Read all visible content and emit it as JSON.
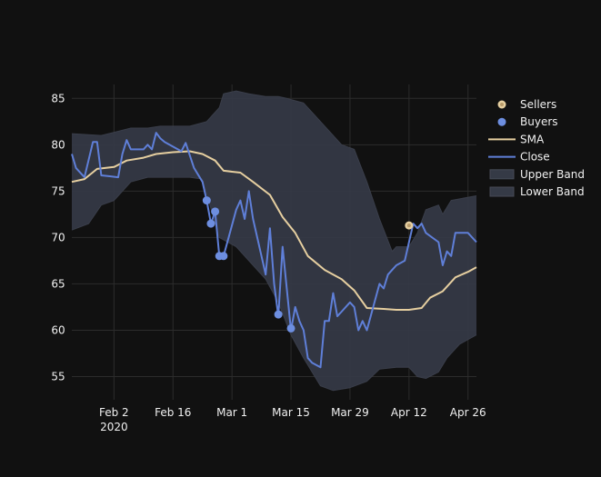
{
  "chart_data": {
    "type": "line",
    "title": "",
    "xlabel": "",
    "ylabel": "",
    "x_ticks": [
      {
        "date": "2020-02-02",
        "label": "Feb 2",
        "sublabel": "2020"
      },
      {
        "date": "2020-02-16",
        "label": "Feb 16",
        "sublabel": ""
      },
      {
        "date": "2020-03-01",
        "label": "Mar 1",
        "sublabel": ""
      },
      {
        "date": "2020-03-15",
        "label": "Mar 15",
        "sublabel": ""
      },
      {
        "date": "2020-03-29",
        "label": "Mar 29",
        "sublabel": ""
      },
      {
        "date": "2020-04-12",
        "label": "Apr 12",
        "sublabel": ""
      },
      {
        "date": "2020-04-26",
        "label": "Apr 26",
        "sublabel": ""
      }
    ],
    "xlim": [
      "2020-01-23",
      "2020-04-28"
    ],
    "ylim": [
      52.5,
      86.5
    ],
    "y_ticks": [
      55,
      60,
      65,
      70,
      75,
      80,
      85
    ],
    "grid": true,
    "legend_position": "top-right",
    "series": [
      {
        "name": "Close",
        "color": "#5f7fd8",
        "points": [
          [
            "2020-01-23",
            79
          ],
          [
            "2020-01-24",
            77.5
          ],
          [
            "2020-01-26",
            76.5
          ],
          [
            "2020-01-28",
            80.3
          ],
          [
            "2020-01-29",
            80.3
          ],
          [
            "2020-01-30",
            76.7
          ],
          [
            "2020-02-01",
            76.6
          ],
          [
            "2020-02-03",
            76.5
          ],
          [
            "2020-02-04",
            79
          ],
          [
            "2020-02-05",
            80.5
          ],
          [
            "2020-02-06",
            79.5
          ],
          [
            "2020-02-09",
            79.5
          ],
          [
            "2020-02-10",
            80
          ],
          [
            "2020-02-11",
            79.5
          ],
          [
            "2020-02-12",
            81.3
          ],
          [
            "2020-02-13",
            80.7
          ],
          [
            "2020-02-14",
            80.3
          ],
          [
            "2020-02-18",
            79.3
          ],
          [
            "2020-02-19",
            80.2
          ],
          [
            "2020-02-21",
            77.5
          ],
          [
            "2020-02-23",
            76
          ],
          [
            "2020-02-24",
            74
          ],
          [
            "2020-02-25",
            71.5
          ],
          [
            "2020-02-26",
            72.8
          ],
          [
            "2020-02-27",
            68
          ],
          [
            "2020-02-28",
            68
          ],
          [
            "2020-03-02",
            73
          ],
          [
            "2020-03-03",
            74
          ],
          [
            "2020-03-04",
            72
          ],
          [
            "2020-03-05",
            75
          ],
          [
            "2020-03-06",
            72
          ],
          [
            "2020-03-09",
            66
          ],
          [
            "2020-03-10",
            71
          ],
          [
            "2020-03-11",
            65
          ],
          [
            "2020-03-12",
            61.5
          ],
          [
            "2020-03-13",
            69
          ],
          [
            "2020-03-15",
            60
          ],
          [
            "2020-03-16",
            62.5
          ],
          [
            "2020-03-17",
            61
          ],
          [
            "2020-03-18",
            60
          ],
          [
            "2020-03-19",
            57
          ],
          [
            "2020-03-20",
            56.5
          ],
          [
            "2020-03-22",
            56
          ],
          [
            "2020-03-23",
            61
          ],
          [
            "2020-03-24",
            61
          ],
          [
            "2020-03-25",
            64
          ],
          [
            "2020-03-26",
            61.5
          ],
          [
            "2020-03-27",
            62
          ],
          [
            "2020-03-29",
            63
          ],
          [
            "2020-03-30",
            62.5
          ],
          [
            "2020-03-31",
            60
          ],
          [
            "2020-04-01",
            61
          ],
          [
            "2020-04-02",
            60
          ],
          [
            "2020-04-05",
            65
          ],
          [
            "2020-04-06",
            64.5
          ],
          [
            "2020-04-07",
            66
          ],
          [
            "2020-04-08",
            66.5
          ],
          [
            "2020-04-09",
            67
          ],
          [
            "2020-04-11",
            67.5
          ],
          [
            "2020-04-13",
            71.5
          ],
          [
            "2020-04-14",
            71
          ],
          [
            "2020-04-15",
            71.5
          ],
          [
            "2020-04-16",
            70.5
          ],
          [
            "2020-04-19",
            69.5
          ],
          [
            "2020-04-20",
            67
          ],
          [
            "2020-04-21",
            68.5
          ],
          [
            "2020-04-22",
            68
          ],
          [
            "2020-04-23",
            70.5
          ],
          [
            "2020-04-24",
            70.5
          ],
          [
            "2020-04-26",
            70.5
          ],
          [
            "2020-04-28",
            69.5
          ]
        ]
      },
      {
        "name": "SMA",
        "color": "#e6cfa0",
        "points": [
          [
            "2020-01-23",
            76
          ],
          [
            "2020-01-26",
            76.3
          ],
          [
            "2020-01-29",
            77.4
          ],
          [
            "2020-02-02",
            77.6
          ],
          [
            "2020-02-05",
            78.3
          ],
          [
            "2020-02-09",
            78.6
          ],
          [
            "2020-02-12",
            79
          ],
          [
            "2020-02-16",
            79.2
          ],
          [
            "2020-02-20",
            79.3
          ],
          [
            "2020-02-23",
            79
          ],
          [
            "2020-02-26",
            78.3
          ],
          [
            "2020-02-28",
            77.2
          ],
          [
            "2020-03-03",
            77
          ],
          [
            "2020-03-06",
            76
          ],
          [
            "2020-03-10",
            74.6
          ],
          [
            "2020-03-13",
            72.2
          ],
          [
            "2020-03-16",
            70.5
          ],
          [
            "2020-03-19",
            68
          ],
          [
            "2020-03-23",
            66.5
          ],
          [
            "2020-03-27",
            65.5
          ],
          [
            "2020-03-30",
            64.3
          ],
          [
            "2020-04-02",
            62.4
          ],
          [
            "2020-04-06",
            62.3
          ],
          [
            "2020-04-09",
            62.2
          ],
          [
            "2020-04-12",
            62.2
          ],
          [
            "2020-04-15",
            62.4
          ],
          [
            "2020-04-17",
            63.5
          ],
          [
            "2020-04-20",
            64.2
          ],
          [
            "2020-04-23",
            65.7
          ],
          [
            "2020-04-26",
            66.3
          ],
          [
            "2020-04-28",
            66.8
          ]
        ]
      },
      {
        "name": "Upper Band",
        "color": "#3a3e4a",
        "points": [
          [
            "2020-01-23",
            81.2
          ],
          [
            "2020-01-30",
            81
          ],
          [
            "2020-02-06",
            81.8
          ],
          [
            "2020-02-10",
            81.8
          ],
          [
            "2020-02-13",
            82
          ],
          [
            "2020-02-16",
            82
          ],
          [
            "2020-02-20",
            82
          ],
          [
            "2020-02-24",
            82.5
          ],
          [
            "2020-02-27",
            84
          ],
          [
            "2020-02-28",
            85.5
          ],
          [
            "2020-03-02",
            85.8
          ],
          [
            "2020-03-05",
            85.5
          ],
          [
            "2020-03-09",
            85.2
          ],
          [
            "2020-03-12",
            85.2
          ],
          [
            "2020-03-14",
            85
          ],
          [
            "2020-03-18",
            84.5
          ],
          [
            "2020-03-22",
            82.5
          ],
          [
            "2020-03-25",
            81
          ],
          [
            "2020-03-27",
            80
          ],
          [
            "2020-03-30",
            79.5
          ],
          [
            "2020-04-02",
            76
          ],
          [
            "2020-04-05",
            72
          ],
          [
            "2020-04-08",
            68.5
          ],
          [
            "2020-04-09",
            69
          ],
          [
            "2020-04-12",
            69
          ],
          [
            "2020-04-14",
            70.5
          ],
          [
            "2020-04-16",
            73
          ],
          [
            "2020-04-19",
            73.5
          ],
          [
            "2020-04-20",
            72.5
          ],
          [
            "2020-04-22",
            74
          ],
          [
            "2020-04-28",
            74.5
          ]
        ]
      },
      {
        "name": "Lower Band",
        "color": "#3a3e4a",
        "points": [
          [
            "2020-01-23",
            70.8
          ],
          [
            "2020-01-27",
            71.5
          ],
          [
            "2020-01-30",
            73.5
          ],
          [
            "2020-02-02",
            74
          ],
          [
            "2020-02-06",
            76
          ],
          [
            "2020-02-10",
            76.5
          ],
          [
            "2020-02-13",
            76.5
          ],
          [
            "2020-02-16",
            76.5
          ],
          [
            "2020-02-20",
            76.5
          ],
          [
            "2020-02-23",
            76.3
          ],
          [
            "2020-02-27",
            70
          ],
          [
            "2020-03-02",
            69
          ],
          [
            "2020-03-05",
            67.5
          ],
          [
            "2020-03-09",
            65.5
          ],
          [
            "2020-03-12",
            63
          ],
          [
            "2020-03-15",
            59.5
          ],
          [
            "2020-03-18",
            57
          ],
          [
            "2020-03-22",
            54
          ],
          [
            "2020-03-25",
            53.5
          ],
          [
            "2020-03-29",
            53.8
          ],
          [
            "2020-04-02",
            54.5
          ],
          [
            "2020-04-05",
            55.8
          ],
          [
            "2020-04-09",
            56
          ],
          [
            "2020-04-12",
            56
          ],
          [
            "2020-04-14",
            55
          ],
          [
            "2020-04-16",
            54.8
          ],
          [
            "2020-04-19",
            55.5
          ],
          [
            "2020-04-21",
            57
          ],
          [
            "2020-04-24",
            58.5
          ],
          [
            "2020-04-28",
            59.5
          ]
        ]
      },
      {
        "name": "Buyers",
        "color": "#6d8ee0",
        "type": "scatter",
        "points": [
          [
            "2020-02-24",
            74
          ],
          [
            "2020-02-25",
            71.5
          ],
          [
            "2020-02-26",
            72.8
          ],
          [
            "2020-02-27",
            68
          ],
          [
            "2020-02-28",
            68
          ],
          [
            "2020-03-12",
            61.7
          ],
          [
            "2020-03-15",
            60.2
          ]
        ]
      },
      {
        "name": "Sellers",
        "color": "#e6cfa0",
        "type": "scatter",
        "points": [
          [
            "2020-04-12",
            71.3
          ]
        ]
      }
    ],
    "legend": [
      "Sellers",
      "Buyers",
      "SMA",
      "Close",
      "Upper Band",
      "Lower Band"
    ]
  }
}
